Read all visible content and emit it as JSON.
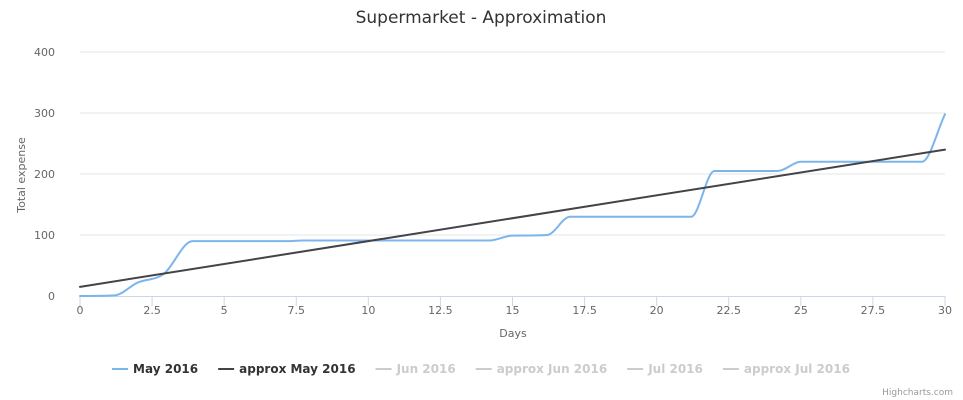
{
  "chart_data": {
    "type": "line",
    "title": "Supermarket - Approximation",
    "xlabel": "Days",
    "ylabel": "Total expense",
    "xlim": [
      0,
      30
    ],
    "ylim": [
      0,
      400
    ],
    "x_ticks": [
      "0",
      "2.5",
      "5",
      "7.5",
      "10",
      "12.5",
      "15",
      "17.5",
      "20",
      "22.5",
      "25",
      "27.5",
      "30"
    ],
    "y_ticks": [
      "0",
      "100",
      "200",
      "300",
      "400"
    ],
    "grid": "horizontal",
    "legend_position": "bottom-center",
    "series": [
      {
        "name": "May 2016",
        "color": "#7cb5ec",
        "visible": true,
        "smooth": true,
        "x": [
          0,
          1.2,
          2,
          2.9,
          3.9,
          7.3,
          7.7,
          14.2,
          15,
          16.2,
          17,
          21.2,
          22,
          24.2,
          25,
          29.2,
          30
        ],
        "y": [
          0,
          1,
          22,
          36,
          90,
          90,
          91,
          91,
          99,
          100,
          130,
          130,
          205,
          205,
          220,
          220,
          298
        ]
      },
      {
        "name": "approx May 2016",
        "color": "#434348",
        "visible": true,
        "smooth": false,
        "x": [
          0,
          30
        ],
        "y": [
          15,
          240
        ]
      },
      {
        "name": "Jun 2016",
        "color": "#cccccc",
        "visible": false
      },
      {
        "name": "approx Jun 2016",
        "color": "#cccccc",
        "visible": false
      },
      {
        "name": "Jul 2016",
        "color": "#cccccc",
        "visible": false
      },
      {
        "name": "approx Jul 2016",
        "color": "#cccccc",
        "visible": false
      }
    ]
  },
  "credits": "Highcharts.com"
}
